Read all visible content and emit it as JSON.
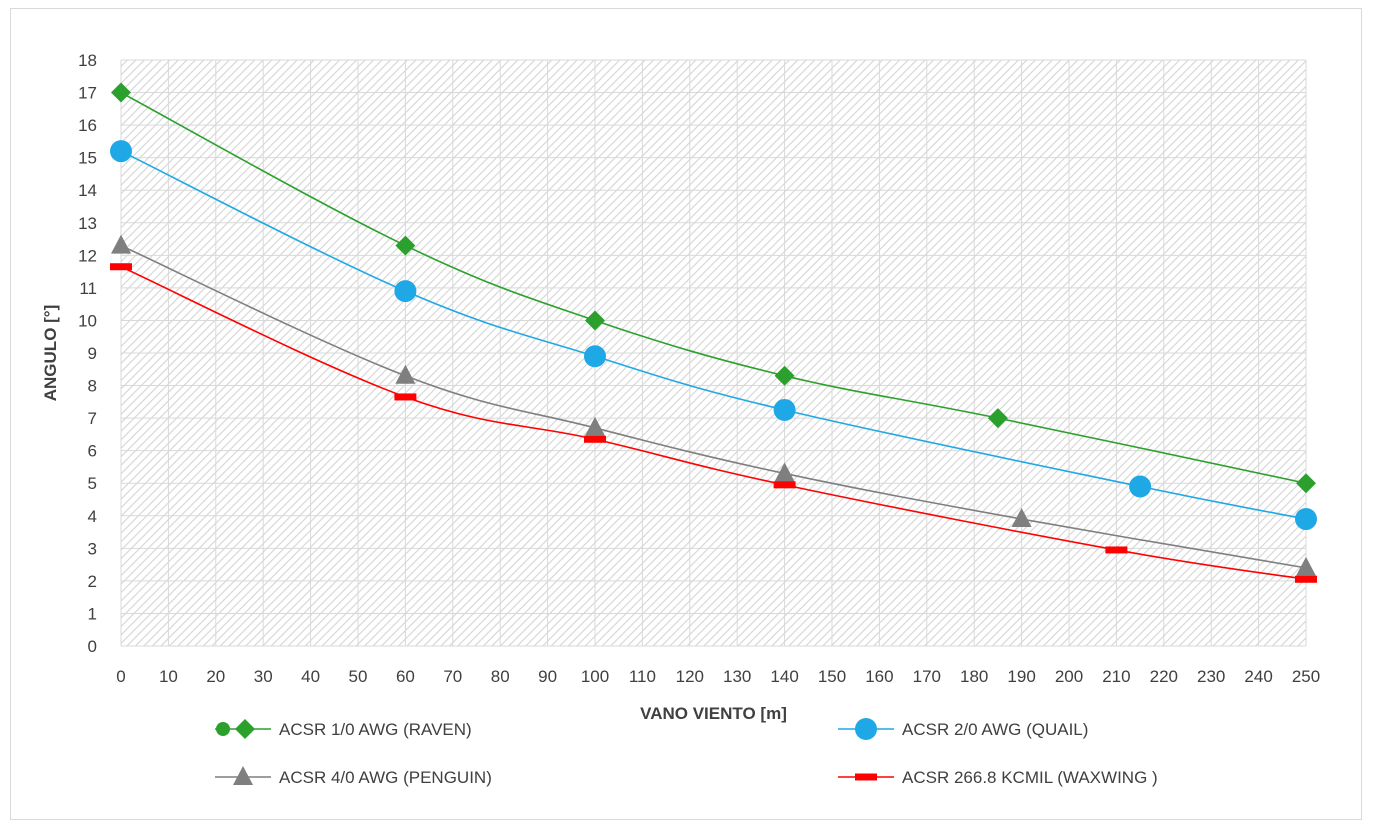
{
  "chart_data": {
    "type": "line",
    "title": "",
    "xlabel": "VANO VIENTO [m]",
    "ylabel": "ANGULO [°]",
    "xlim": [
      0,
      250
    ],
    "ylim": [
      0,
      18
    ],
    "x_ticks": [
      "0",
      "10",
      "20",
      "30",
      "40",
      "50",
      "60",
      "70",
      "80",
      "90",
      "100",
      "110",
      "120",
      "130",
      "140",
      "150",
      "160",
      "170",
      "180",
      "190",
      "200",
      "210",
      "220",
      "230",
      "240",
      "250"
    ],
    "y_ticks": [
      "0",
      "1",
      "2",
      "3",
      "4",
      "5",
      "6",
      "7",
      "8",
      "9",
      "10",
      "11",
      "12",
      "13",
      "14",
      "15",
      "16",
      "17",
      "18"
    ],
    "grid": true,
    "legend_position": "bottom",
    "series": [
      {
        "name": "ACSR 1/0 AWG (RAVEN)",
        "color": "#2ca02c",
        "marker": "diamond",
        "points": [
          [
            0,
            17
          ],
          [
            60,
            12.3
          ],
          [
            100,
            10
          ],
          [
            140,
            8.3
          ],
          [
            185,
            7
          ],
          [
            250,
            5
          ]
        ]
      },
      {
        "name": "ACSR 2/0 AWG (QUAIL)",
        "color": "#1fa8e6",
        "marker": "circle",
        "points": [
          [
            0,
            15.2
          ],
          [
            60,
            10.9
          ],
          [
            100,
            8.9
          ],
          [
            140,
            7.25
          ],
          [
            215,
            4.9
          ],
          [
            250,
            3.9
          ]
        ]
      },
      {
        "name": "ACSR 4/0 AWG (PENGUIN)",
        "color": "#7f7f7f",
        "marker": "triangle",
        "points": [
          [
            0,
            12.3
          ],
          [
            60,
            8.3
          ],
          [
            100,
            6.7
          ],
          [
            140,
            5.3
          ],
          [
            190,
            3.9
          ],
          [
            250,
            2.4
          ]
        ]
      },
      {
        "name": "ACSR 266.8 KCMIL (WAXWING )",
        "color": "#ff0000",
        "marker": "dash",
        "points": [
          [
            0,
            11.65
          ],
          [
            60,
            7.65
          ],
          [
            100,
            6.35
          ],
          [
            140,
            4.95
          ],
          [
            210,
            2.95
          ],
          [
            250,
            2.05
          ]
        ]
      }
    ]
  }
}
